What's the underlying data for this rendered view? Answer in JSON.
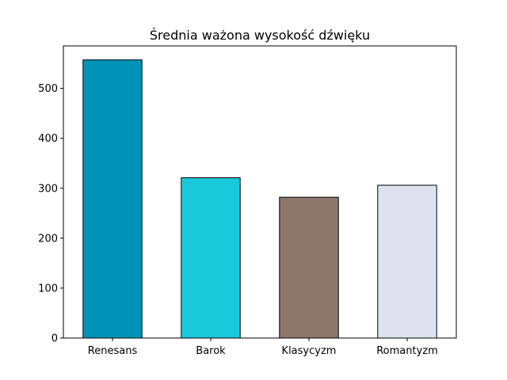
{
  "chart_data": {
    "type": "bar",
    "title": "Średnia ważona wysokość dźwięku",
    "xlabel": "",
    "ylabel": "",
    "categories": [
      "Renesans",
      "Barok",
      "Klasycyzm",
      "Romantyzm"
    ],
    "values": [
      557,
      321,
      282,
      306
    ],
    "colors": [
      "#0093b8",
      "#19c8d9",
      "#8b776b",
      "#dde2ee"
    ],
    "ylim": [
      0,
      585
    ],
    "yticks": [
      0,
      100,
      200,
      300,
      400,
      500
    ],
    "ytick_labels": [
      "0",
      "100",
      "200",
      "300",
      "400",
      "500"
    ],
    "grid": false,
    "legend": false
  }
}
